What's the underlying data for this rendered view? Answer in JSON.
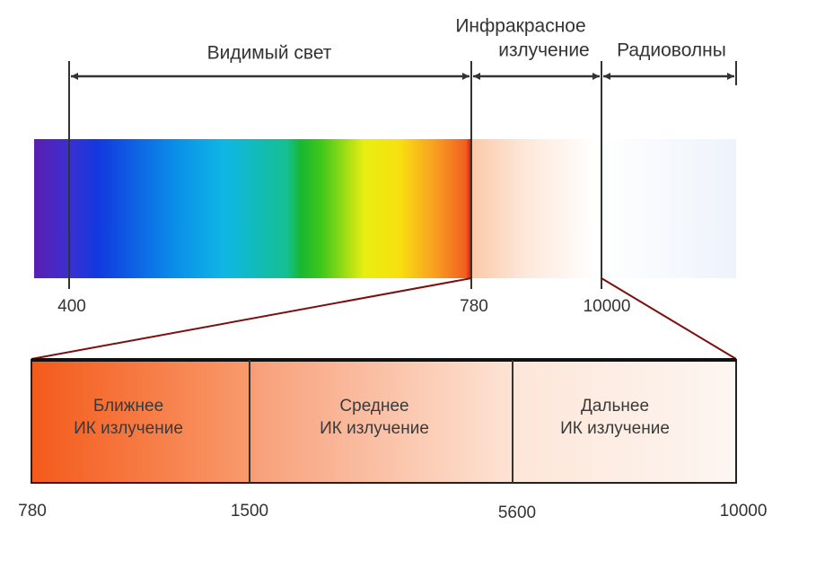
{
  "top": {
    "bands": [
      {
        "lines": [
          "Видимый свет"
        ]
      },
      {
        "lines": [
          "Инфракрасное",
          "излучение"
        ]
      },
      {
        "lines": [
          "Радиоволны"
        ]
      }
    ],
    "ticks": [
      "400",
      "780",
      "10000"
    ]
  },
  "bottom": {
    "regions": [
      {
        "lines": [
          "Ближнее",
          "ИК излучение"
        ]
      },
      {
        "lines": [
          "Среднее",
          "ИК излучение"
        ]
      },
      {
        "lines": [
          "Дальнее",
          "ИК излучение"
        ]
      }
    ],
    "ticks": [
      "780",
      "1500",
      "5600",
      "10000"
    ]
  }
}
